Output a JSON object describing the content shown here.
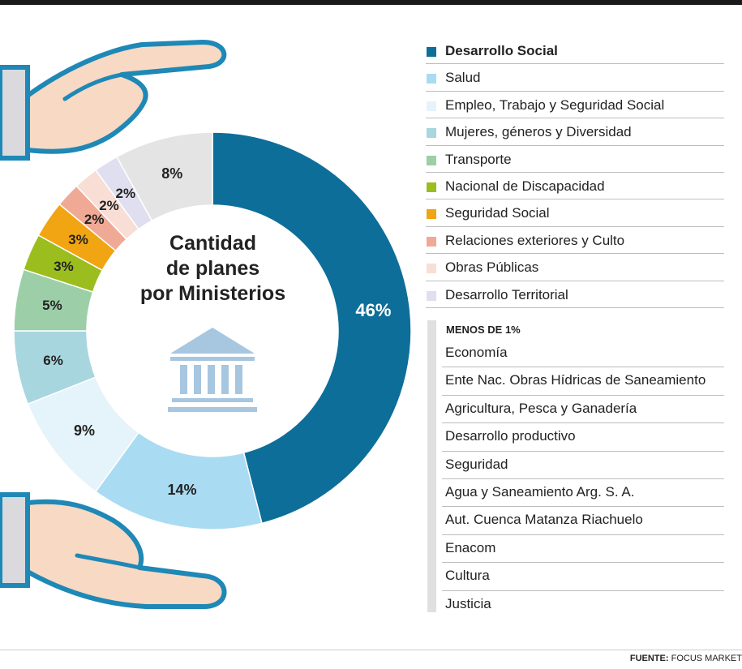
{
  "chart_data": {
    "type": "pie",
    "donut": true,
    "title_lines": [
      "Cantidad",
      "de planes",
      "por Ministerios"
    ],
    "categories": [
      "Desarrollo Social",
      "Salud",
      "Empleo, Trabajo y Seguridad Social",
      "Mujeres, géneros y Diversidad",
      "Transporte",
      "Nacional de Discapacidad",
      "Seguridad Social",
      "Relaciones exteriores y Culto",
      "Obras Públicas",
      "Desarrollo Territorial",
      "Menos de 1%"
    ],
    "values": [
      46,
      14,
      9,
      6,
      5,
      3,
      3,
      2,
      2,
      2,
      8
    ],
    "value_labels": [
      "46%",
      "14%",
      "9%",
      "6%",
      "5%",
      "3%",
      "3%",
      "2%",
      "2%",
      "2%",
      "8%"
    ],
    "colors": [
      "#0d6e99",
      "#a9dbf3",
      "#e5f3fa",
      "#a8d6df",
      "#9ccfa7",
      "#9bbd1e",
      "#f1a512",
      "#f0a995",
      "#f8ded5",
      "#dfdff0",
      "#e4e4e4"
    ],
    "legend_placement": "right"
  },
  "legend": {
    "items": [
      {
        "label": "Desarrollo Social",
        "color": "#0d6e99"
      },
      {
        "label": "Salud",
        "color": "#a9dbf3"
      },
      {
        "label": "Empleo, Trabajo y Seguridad Social",
        "color": "#e5f3fa"
      },
      {
        "label": "Mujeres, géneros y Diversidad",
        "color": "#a8d6df"
      },
      {
        "label": "Transporte",
        "color": "#9ccfa7"
      },
      {
        "label": "Nacional de Discapacidad",
        "color": "#9bbd1e"
      },
      {
        "label": "Seguridad Social",
        "color": "#f1a512"
      },
      {
        "label": "Relaciones exteriores y Culto",
        "color": "#f0a995"
      },
      {
        "label": "Obras Públicas",
        "color": "#f8ded5"
      },
      {
        "label": "Desarrollo Territorial",
        "color": "#dfdff0"
      }
    ]
  },
  "minor": {
    "header": "MENOS DE 1%",
    "items": [
      "Economía",
      "Ente Nac. Obras Hídricas de Saneamiento",
      "Agricultura, Pesca y Ganadería",
      "Desarrollo productivo",
      "Seguridad",
      "Agua y Saneamiento Arg. S. A.",
      "Aut. Cuenca Matanza Riachuelo",
      "Enacom",
      "Cultura",
      "Justicia"
    ]
  },
  "source": {
    "prefix": "FUENTE:",
    "name": "FOCUS MARKET"
  },
  "icons": {
    "top": "hand-icon",
    "bottom": "hand-icon",
    "center": "government-building-icon"
  }
}
